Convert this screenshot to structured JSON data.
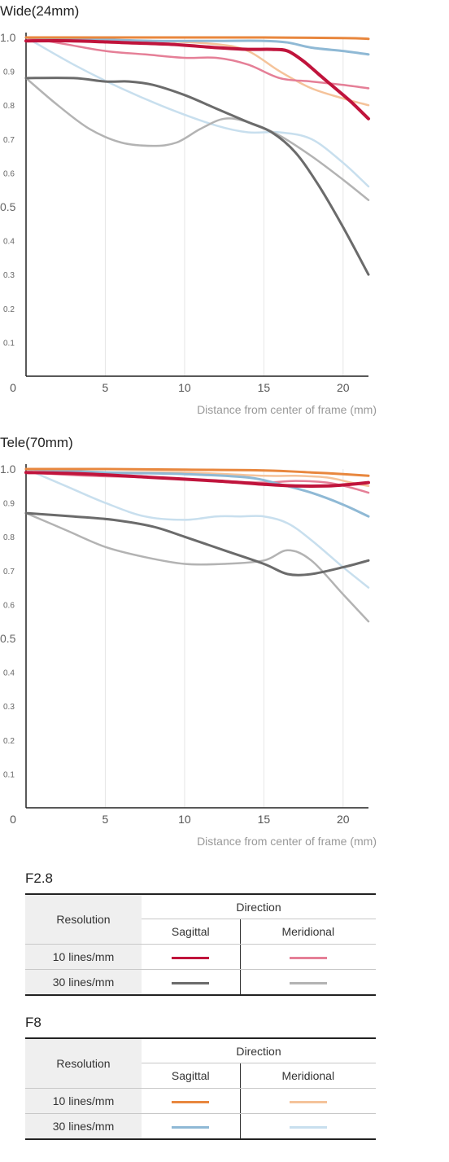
{
  "chart_data": [
    {
      "type": "line",
      "title": "Wide(24mm)",
      "xlabel": "Distance from center of frame (mm)",
      "ylabel": "",
      "xlim": [
        0,
        21.6
      ],
      "ylim": [
        0,
        1.0
      ],
      "x_ticks": [
        0,
        5,
        10,
        15,
        20
      ],
      "x_tick_labels": [
        "0",
        "5",
        "10",
        "15",
        "20"
      ],
      "y_ticks": [
        0.1,
        0.2,
        0.3,
        0.4,
        0.5,
        0.6,
        0.7,
        0.8,
        0.9,
        1.0
      ],
      "y_tick_labels": [
        "0.1",
        "0.2",
        "0.3",
        "0.4",
        "0.5",
        "0.6",
        "0.7",
        "0.8",
        "0.9",
        "1.0"
      ],
      "vertical_grid": true,
      "series": [
        {
          "color": "#c8dfee",
          "width": 2.5,
          "x": [
            0,
            3,
            6,
            9,
            12,
            14,
            16,
            18,
            20,
            21.6
          ],
          "y": [
            1.0,
            0.92,
            0.85,
            0.79,
            0.74,
            0.72,
            0.72,
            0.7,
            0.63,
            0.56
          ]
        },
        {
          "color": "#b3b3b3",
          "width": 2.5,
          "x": [
            0,
            2,
            4,
            6,
            8,
            9.5,
            11,
            12.5,
            14,
            16,
            18,
            20,
            21.6
          ],
          "y": [
            0.88,
            0.8,
            0.73,
            0.69,
            0.68,
            0.69,
            0.73,
            0.76,
            0.75,
            0.71,
            0.65,
            0.58,
            0.52
          ]
        },
        {
          "color": "#6b6b6b",
          "width": 3,
          "x": [
            0,
            3,
            5,
            6.5,
            8,
            10,
            12,
            14,
            15.5,
            17,
            18.5,
            20,
            21.6
          ],
          "y": [
            0.88,
            0.88,
            0.87,
            0.87,
            0.86,
            0.83,
            0.79,
            0.75,
            0.72,
            0.66,
            0.56,
            0.44,
            0.3
          ]
        },
        {
          "color": "#f5c39a",
          "width": 2.5,
          "x": [
            0,
            4,
            8,
            12,
            14,
            16,
            18,
            20,
            21.6
          ],
          "y": [
            1.0,
            0.99,
            0.99,
            0.98,
            0.96,
            0.9,
            0.85,
            0.82,
            0.8
          ]
        },
        {
          "color": "#e57f97",
          "width": 2.5,
          "x": [
            0,
            2.5,
            5,
            7.5,
            10,
            12,
            14,
            16,
            18,
            20,
            21.6
          ],
          "y": [
            1.0,
            0.98,
            0.96,
            0.95,
            0.94,
            0.94,
            0.92,
            0.88,
            0.87,
            0.86,
            0.85
          ]
        },
        {
          "color": "#8fb9d5",
          "width": 3,
          "x": [
            0,
            4,
            8,
            12,
            15,
            16.5,
            18,
            20,
            21.6
          ],
          "y": [
            1.0,
            0.995,
            0.99,
            0.99,
            0.99,
            0.985,
            0.97,
            0.96,
            0.95
          ]
        },
        {
          "color": "#e8873e",
          "width": 3,
          "x": [
            0,
            5,
            10,
            15,
            20,
            21.6
          ],
          "y": [
            1.0,
            1.0,
            1.0,
            1.0,
            0.998,
            0.996
          ]
        },
        {
          "color": "#c0143c",
          "width": 4,
          "x": [
            0,
            3,
            6,
            9,
            12,
            14,
            15.5,
            16.5,
            17.5,
            18.5,
            19.5,
            20.5,
            21.6
          ],
          "y": [
            0.99,
            0.99,
            0.985,
            0.98,
            0.97,
            0.965,
            0.965,
            0.96,
            0.93,
            0.89,
            0.85,
            0.81,
            0.76
          ]
        }
      ]
    },
    {
      "type": "line",
      "title": "Tele(70mm)",
      "xlabel": "Distance from center of frame (mm)",
      "ylabel": "",
      "xlim": [
        0,
        21.6
      ],
      "ylim": [
        0,
        1.0
      ],
      "x_ticks": [
        0,
        5,
        10,
        15,
        20
      ],
      "x_tick_labels": [
        "0",
        "5",
        "10",
        "15",
        "20"
      ],
      "y_ticks": [
        0.1,
        0.2,
        0.3,
        0.4,
        0.5,
        0.6,
        0.7,
        0.8,
        0.9,
        1.0
      ],
      "y_tick_labels": [
        "0.1",
        "0.2",
        "0.3",
        "0.4",
        "0.5",
        "0.6",
        "0.7",
        "0.8",
        "0.9",
        "1.0"
      ],
      "vertical_grid": true,
      "series": [
        {
          "color": "#c8dfee",
          "width": 2.5,
          "x": [
            0,
            2.5,
            5,
            7.5,
            10,
            12,
            13.5,
            15,
            16.5,
            18,
            20,
            21.6
          ],
          "y": [
            1.0,
            0.95,
            0.9,
            0.86,
            0.85,
            0.86,
            0.86,
            0.86,
            0.84,
            0.79,
            0.71,
            0.65
          ]
        },
        {
          "color": "#b3b3b3",
          "width": 2.5,
          "x": [
            0,
            2.5,
            5,
            7.5,
            10,
            12.5,
            15,
            16.5,
            18,
            20,
            21.6
          ],
          "y": [
            0.87,
            0.82,
            0.77,
            0.74,
            0.72,
            0.72,
            0.73,
            0.76,
            0.73,
            0.63,
            0.55
          ]
        },
        {
          "color": "#6b6b6b",
          "width": 3,
          "x": [
            0,
            3,
            5.5,
            8,
            10,
            12.5,
            15,
            16.5,
            18,
            20,
            21.6
          ],
          "y": [
            0.87,
            0.86,
            0.85,
            0.83,
            0.8,
            0.76,
            0.72,
            0.69,
            0.69,
            0.71,
            0.73
          ]
        },
        {
          "color": "#f5c39a",
          "width": 2.5,
          "x": [
            0,
            5,
            10,
            15,
            17,
            19,
            20.5,
            21.6
          ],
          "y": [
            0.99,
            0.99,
            0.99,
            0.98,
            0.98,
            0.975,
            0.96,
            0.95
          ]
        },
        {
          "color": "#e57f97",
          "width": 2.5,
          "x": [
            0,
            4,
            8,
            12,
            15,
            17,
            19,
            20.5,
            21.6
          ],
          "y": [
            0.99,
            0.98,
            0.975,
            0.965,
            0.96,
            0.965,
            0.96,
            0.945,
            0.93
          ]
        },
        {
          "color": "#8fb9d5",
          "width": 3,
          "x": [
            0,
            5,
            10,
            14,
            16,
            18,
            20,
            21.6
          ],
          "y": [
            1.0,
            0.99,
            0.985,
            0.975,
            0.955,
            0.93,
            0.895,
            0.86
          ]
        },
        {
          "color": "#e8873e",
          "width": 3,
          "x": [
            0,
            5,
            10,
            15,
            18,
            20,
            21.6
          ],
          "y": [
            1.0,
            1.0,
            0.998,
            0.996,
            0.99,
            0.985,
            0.98
          ]
        },
        {
          "color": "#c0143c",
          "width": 4,
          "x": [
            0,
            4,
            8,
            12,
            15,
            17,
            19,
            20.5,
            21.6
          ],
          "y": [
            0.99,
            0.985,
            0.975,
            0.965,
            0.955,
            0.95,
            0.95,
            0.955,
            0.96
          ]
        }
      ]
    }
  ],
  "legend_tables": [
    {
      "title": "F2.8",
      "resolution_header": "Resolution",
      "direction_header": "Direction",
      "sagittal_label": "Sagittal",
      "meridional_label": "Meridional",
      "rows": [
        {
          "label": "10 lines/mm",
          "sagittal_color": "#c0143c",
          "meridional_color": "#e57f97"
        },
        {
          "label": "30 lines/mm",
          "sagittal_color": "#6b6b6b",
          "meridional_color": "#b3b3b3"
        }
      ]
    },
    {
      "title": "F8",
      "resolution_header": "Resolution",
      "direction_header": "Direction",
      "sagittal_label": "Sagittal",
      "meridional_label": "Meridional",
      "rows": [
        {
          "label": "10 lines/mm",
          "sagittal_color": "#e8873e",
          "meridional_color": "#f5c39a"
        },
        {
          "label": "30 lines/mm",
          "sagittal_color": "#8fb9d5",
          "meridional_color": "#c8dfee"
        }
      ]
    }
  ]
}
